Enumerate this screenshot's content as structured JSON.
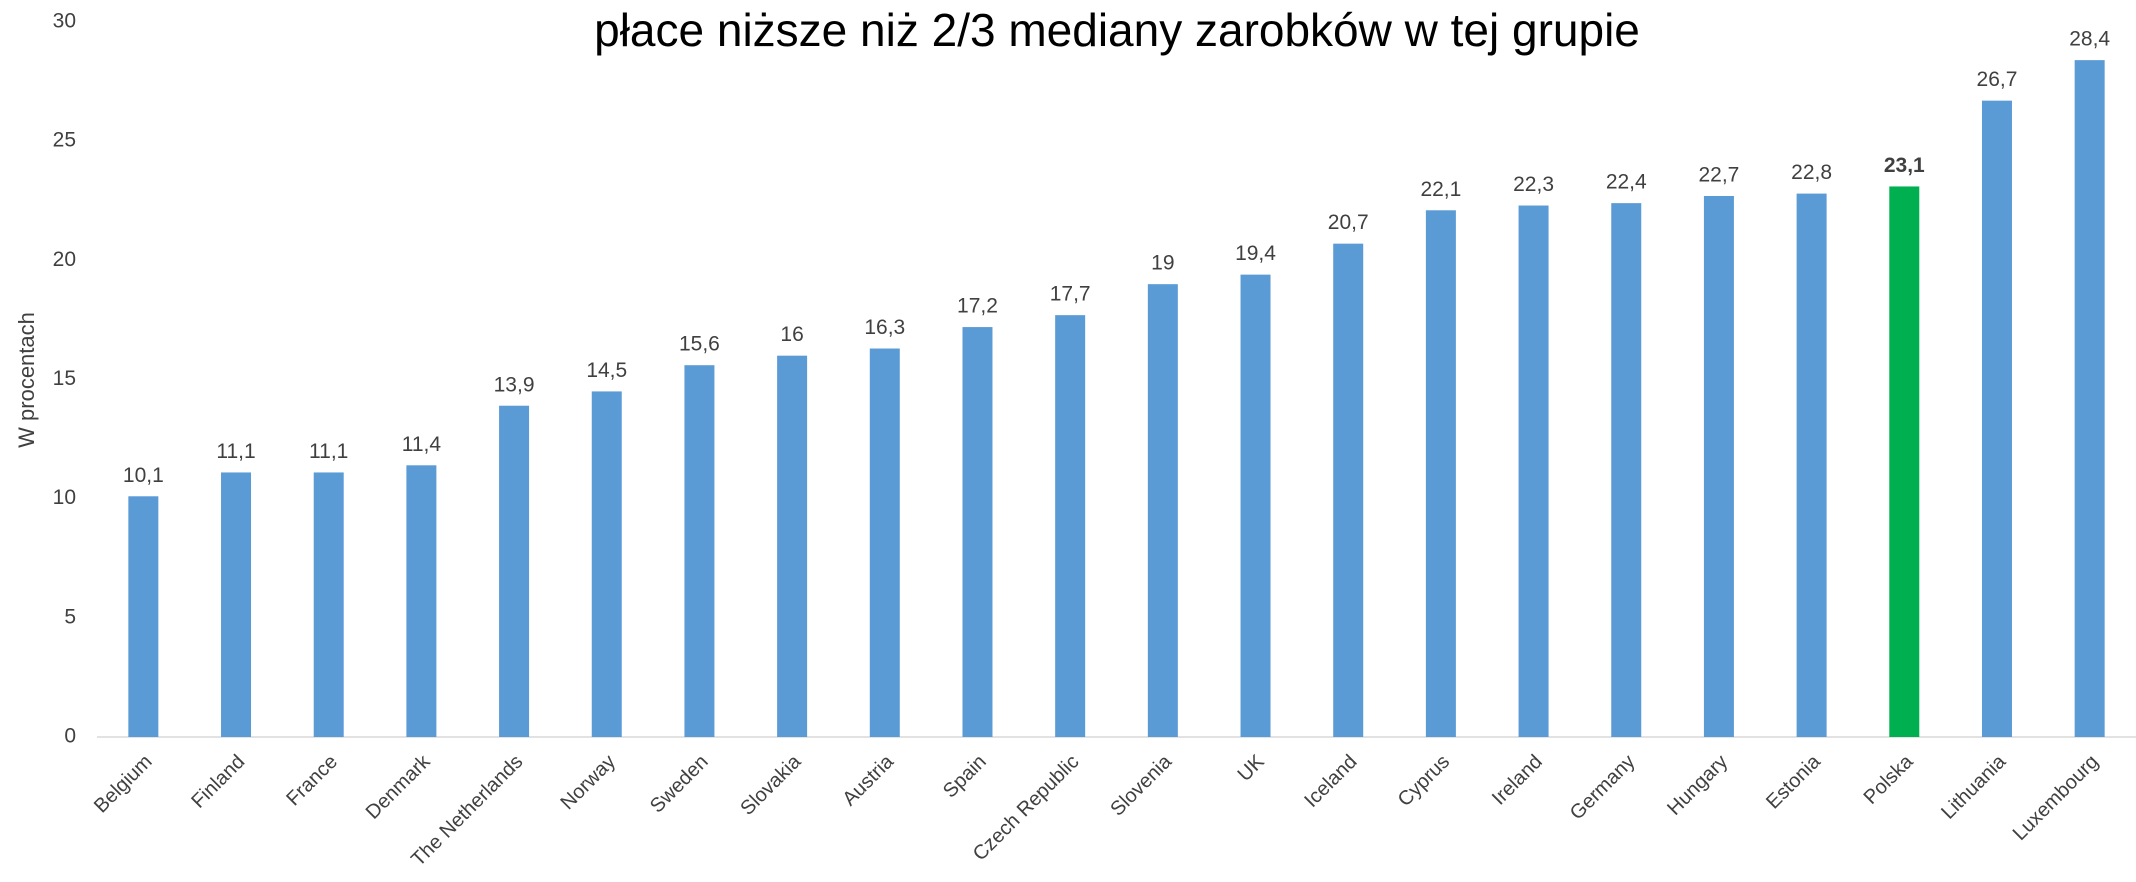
{
  "chart_data": {
    "type": "bar",
    "title": "płace niższe niż 2/3 mediany zarobków w tej grupie",
    "y_label": "W procentach",
    "categories": [
      "Belgium",
      "Finland",
      "France",
      "Denmark",
      "The Netherlands",
      "Norway",
      "Sweden",
      "Slovakia",
      "Austria",
      "Spain",
      "Czech Republic",
      "Slovenia",
      "UK",
      "Iceland",
      "Cyprus",
      "Ireland",
      "Germany",
      "Hungary",
      "Estonia",
      "Polska",
      "Lithuania",
      "Luxembourg"
    ],
    "values": [
      10.1,
      11.1,
      11.1,
      11.4,
      13.9,
      14.5,
      15.6,
      16,
      16.3,
      17.2,
      17.7,
      19,
      19.4,
      20.7,
      22.1,
      22.3,
      22.4,
      22.7,
      22.8,
      23.1,
      26.7,
      28.4
    ],
    "value_labels": [
      "10,1",
      "11,1",
      "11,1",
      "11,4",
      "13,9",
      "14,5",
      "15,6",
      "16",
      "16,3",
      "17,2",
      "17,7",
      "19",
      "19,4",
      "20,7",
      "22,1",
      "22,3",
      "22,4",
      "22,7",
      "22,8",
      "23,1",
      "26,7",
      "28,4"
    ],
    "color": "#5b9bd5",
    "highlight": {
      "category": "Polska",
      "color": "#00b050",
      "bold": true
    },
    "ylim": [
      0,
      30
    ],
    "yticks": [
      0,
      5,
      10,
      15,
      20,
      25,
      30
    ],
    "grid": false
  }
}
